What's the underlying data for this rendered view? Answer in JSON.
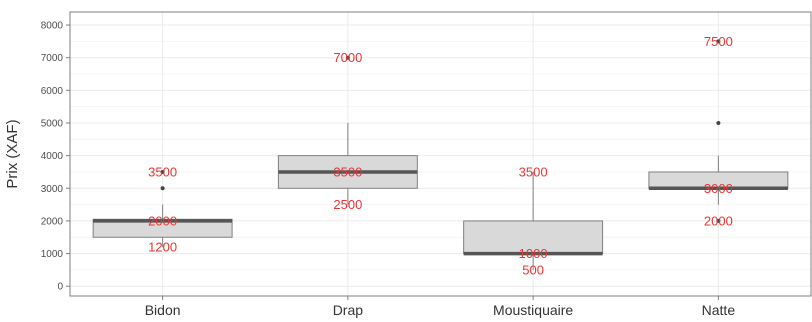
{
  "chart_data": {
    "type": "box",
    "ylabel": "Prix (XAF)",
    "xlabel": "",
    "ylim": [
      -300,
      8400
    ],
    "yticks": [
      0,
      1000,
      2000,
      3000,
      4000,
      5000,
      6000,
      7000,
      8000
    ],
    "grid": true,
    "categories": [
      "Bidon",
      "Drap",
      "Moustiquaire",
      "Natte"
    ],
    "boxes": [
      {
        "category": "Bidon",
        "q1": 1500,
        "median": 2000,
        "q3": 2050,
        "whisker_low": 1200,
        "whisker_high": 2500,
        "outliers": [
          3000,
          3500
        ]
      },
      {
        "category": "Drap",
        "q1": 3000,
        "median": 3500,
        "q3": 4000,
        "whisker_low": 2500,
        "whisker_high": 5000,
        "outliers": [
          7000
        ]
      },
      {
        "category": "Moustiquaire",
        "q1": 1000,
        "median": 1000,
        "q3": 2000,
        "whisker_low": 500,
        "whisker_high": 3500,
        "outliers": []
      },
      {
        "category": "Natte",
        "q1": 3000,
        "median": 3000,
        "q3": 3500,
        "whisker_low": 2500,
        "whisker_high": 4000,
        "outliers": [
          2000,
          5000,
          7500
        ]
      }
    ],
    "annotations": [
      {
        "category": "Bidon",
        "y": 3500,
        "text": "3500"
      },
      {
        "category": "Bidon",
        "y": 2000,
        "text": "2000"
      },
      {
        "category": "Bidon",
        "y": 1200,
        "text": "1200"
      },
      {
        "category": "Drap",
        "y": 7000,
        "text": "7000"
      },
      {
        "category": "Drap",
        "y": 3500,
        "text": "3500"
      },
      {
        "category": "Drap",
        "y": 2500,
        "text": "2500"
      },
      {
        "category": "Moustiquaire",
        "y": 3500,
        "text": "3500"
      },
      {
        "category": "Moustiquaire",
        "y": 1000,
        "text": "1000"
      },
      {
        "category": "Moustiquaire",
        "y": 500,
        "text": "500"
      },
      {
        "category": "Natte",
        "y": 7500,
        "text": "7500"
      },
      {
        "category": "Natte",
        "y": 3000,
        "text": "3000"
      },
      {
        "category": "Natte",
        "y": 2000,
        "text": "2000"
      }
    ],
    "colors": {
      "box_fill": "#d9d9d9",
      "box_stroke": "#7f7f7f",
      "median": "#555555",
      "outlier": "#444444",
      "annotation": "#ee3333",
      "grid": "#ebebeb",
      "panel_border": "#7f7f7f"
    }
  }
}
